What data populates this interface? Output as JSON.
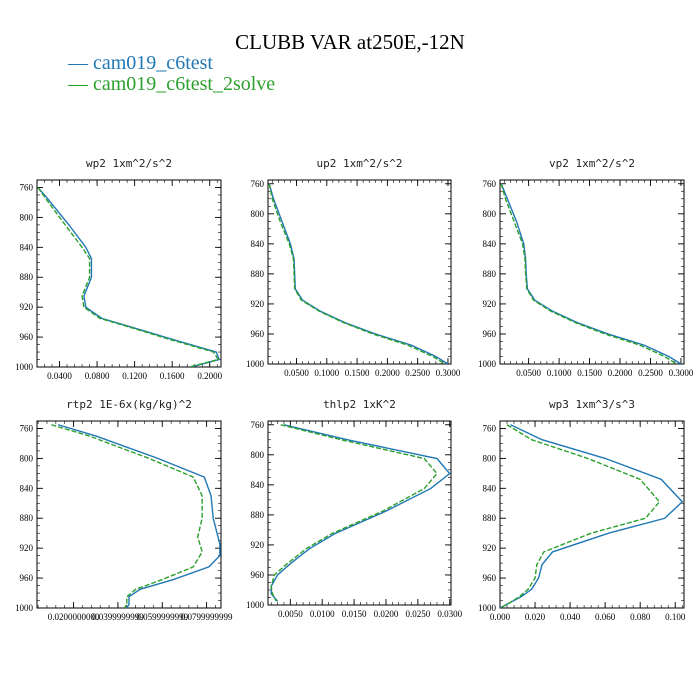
{
  "title": "CLUBB VAR at250E,-12N",
  "legend": [
    {
      "label": "cam019_c6test",
      "color": "#1f77b4",
      "dash": "solid",
      "marker": "—"
    },
    {
      "label": "cam019_c6test_2solve",
      "color": "#2ca02c",
      "dash": "dashed",
      "marker": "—"
    }
  ],
  "chart_data": [
    {
      "type": "line",
      "title": "wp2  1xm^2/s^2",
      "xlim": [
        0.016,
        0.212
      ],
      "ylim": [
        750,
        1000
      ],
      "xticks": [
        0.04,
        0.08,
        0.12,
        0.16,
        0.2
      ],
      "xtick_labels": [
        "0.0400",
        "0.0800",
        "0.1200",
        "0.1600",
        "0.2000"
      ],
      "yticks": [
        760,
        800,
        840,
        880,
        920,
        960,
        1000
      ],
      "ytick_labels": [
        "760",
        "800",
        "840",
        "880",
        "920",
        "960",
        "1000"
      ],
      "series": [
        {
          "name": "cam019_c6test",
          "x": [
            0.017,
            0.028,
            0.05,
            0.068,
            0.074,
            0.074,
            0.066,
            0.068,
            0.085,
            0.12,
            0.16,
            0.207,
            0.21,
            0.18
          ],
          "y": [
            760,
            776,
            810,
            840,
            855,
            880,
            905,
            920,
            935,
            948,
            963,
            980,
            990,
            1000
          ]
        },
        {
          "name": "cam019_c6test_2solve",
          "x": [
            0.017,
            0.026,
            0.046,
            0.064,
            0.072,
            0.072,
            0.064,
            0.066,
            0.083,
            0.118,
            0.157,
            0.204,
            0.209,
            0.178
          ],
          "y": [
            760,
            776,
            810,
            840,
            855,
            880,
            905,
            920,
            935,
            948,
            963,
            980,
            990,
            1000
          ]
        }
      ]
    },
    {
      "type": "line",
      "title": "up2  1xm^2/s^2",
      "xlim": [
        0.003,
        0.305
      ],
      "ylim": [
        755,
        1000
      ],
      "xticks": [
        0.05,
        0.1,
        0.15,
        0.2,
        0.25,
        0.3
      ],
      "xtick_labels": [
        "0.0500",
        "0.1000",
        "0.1500",
        "0.2000",
        "0.2500",
        "0.3000"
      ],
      "yticks": [
        760,
        800,
        840,
        880,
        920,
        960,
        1000
      ],
      "ytick_labels": [
        "760",
        "800",
        "840",
        "880",
        "920",
        "960",
        "1000"
      ],
      "series": [
        {
          "name": "cam019_c6test",
          "x": [
            0.005,
            0.012,
            0.026,
            0.04,
            0.046,
            0.047,
            0.048,
            0.06,
            0.09,
            0.13,
            0.18,
            0.24,
            0.28,
            0.3
          ],
          "y": [
            760,
            780,
            810,
            840,
            860,
            880,
            900,
            915,
            930,
            945,
            960,
            975,
            990,
            1000
          ]
        },
        {
          "name": "cam019_c6test_2solve",
          "x": [
            0.005,
            0.01,
            0.023,
            0.038,
            0.045,
            0.046,
            0.047,
            0.058,
            0.088,
            0.128,
            0.176,
            0.234,
            0.275,
            0.295
          ],
          "y": [
            760,
            780,
            810,
            840,
            860,
            880,
            900,
            915,
            930,
            945,
            960,
            975,
            990,
            1000
          ]
        }
      ]
    },
    {
      "type": "line",
      "title": "vp2  1xm^2/s^2",
      "xlim": [
        0.003,
        0.305
      ],
      "ylim": [
        755,
        1000
      ],
      "xticks": [
        0.05,
        0.1,
        0.15,
        0.2,
        0.25,
        0.3
      ],
      "xtick_labels": [
        "0.0500",
        "0.1000",
        "0.1500",
        "0.2000",
        "0.2500",
        "0.3000"
      ],
      "yticks": [
        760,
        800,
        840,
        880,
        920,
        960,
        1000
      ],
      "ytick_labels": [
        "760",
        "800",
        "840",
        "880",
        "920",
        "960",
        "1000"
      ],
      "series": [
        {
          "name": "cam019_c6test",
          "x": [
            0.005,
            0.015,
            0.03,
            0.042,
            0.045,
            0.046,
            0.048,
            0.06,
            0.09,
            0.13,
            0.18,
            0.24,
            0.28,
            0.3
          ],
          "y": [
            760,
            780,
            810,
            840,
            860,
            880,
            900,
            915,
            930,
            945,
            960,
            975,
            990,
            1000
          ]
        },
        {
          "name": "cam019_c6test_2solve",
          "x": [
            0.005,
            0.012,
            0.026,
            0.04,
            0.044,
            0.045,
            0.047,
            0.058,
            0.087,
            0.127,
            0.175,
            0.233,
            0.273,
            0.293
          ],
          "y": [
            760,
            780,
            810,
            840,
            860,
            880,
            900,
            915,
            930,
            945,
            960,
            975,
            990,
            1000
          ]
        }
      ]
    },
    {
      "type": "line",
      "title": "rtp2  1E-6x(kg/kg)^2",
      "xlim": [
        0.0035,
        0.0865
      ],
      "ylim": [
        750,
        1000
      ],
      "xticks": [
        0.02,
        0.04,
        0.06,
        0.08
      ],
      "xtick_labels": [
        "0.0200000000",
        "0.0399999999",
        "0.0599999999",
        "0.0799999999"
      ],
      "yticks": [
        760,
        800,
        840,
        880,
        920,
        960,
        1000
      ],
      "ytick_labels": [
        "760",
        "800",
        "840",
        "880",
        "920",
        "960",
        "1000"
      ],
      "series": [
        {
          "name": "cam019_c6test",
          "x": [
            0.013,
            0.03,
            0.058,
            0.079,
            0.082,
            0.083,
            0.086,
            0.086,
            0.081,
            0.065,
            0.05,
            0.045,
            0.045,
            0.044
          ],
          "y": [
            755,
            770,
            800,
            825,
            850,
            880,
            915,
            930,
            945,
            962,
            975,
            985,
            995,
            1000
          ]
        },
        {
          "name": "cam019_c6test_2solve",
          "x": [
            0.01,
            0.027,
            0.054,
            0.074,
            0.078,
            0.078,
            0.076,
            0.078,
            0.074,
            0.06,
            0.048,
            0.044,
            0.044,
            0.043
          ],
          "y": [
            755,
            770,
            800,
            825,
            850,
            880,
            905,
            925,
            945,
            962,
            975,
            985,
            995,
            1000
          ]
        }
      ]
    },
    {
      "type": "line",
      "title": "thlp2  1xK^2",
      "xlim": [
        0.0015,
        0.0302
      ],
      "ylim": [
        755,
        1000
      ],
      "xticks": [
        0.005,
        0.01,
        0.015,
        0.02,
        0.025,
        0.03
      ],
      "xtick_labels": [
        "0.0050",
        "0.0100",
        "0.0150",
        "0.0200",
        "0.0250",
        "0.0300"
      ],
      "yticks": [
        760,
        800,
        840,
        880,
        920,
        960,
        1000
      ],
      "ytick_labels": [
        "760",
        "800",
        "840",
        "880",
        "920",
        "960",
        "1000"
      ],
      "series": [
        {
          "name": "cam019_c6test",
          "x": [
            0.004,
            0.014,
            0.028,
            0.03,
            0.027,
            0.02,
            0.012,
            0.008,
            0.005,
            0.003,
            0.002,
            0.002,
            0.003
          ],
          "y": [
            760,
            780,
            805,
            825,
            845,
            875,
            905,
            925,
            945,
            960,
            975,
            985,
            995
          ]
        },
        {
          "name": "cam019_c6test_2solve",
          "x": [
            0.0035,
            0.013,
            0.026,
            0.028,
            0.026,
            0.0195,
            0.0115,
            0.0075,
            0.0045,
            0.0025,
            0.002,
            0.0022,
            0.0028
          ],
          "y": [
            760,
            780,
            805,
            825,
            845,
            875,
            905,
            925,
            945,
            960,
            975,
            985,
            995
          ]
        }
      ]
    },
    {
      "type": "line",
      "title": "wp3  1xm^3/s^3",
      "xlim": [
        0.0,
        0.105
      ],
      "ylim": [
        750,
        1000
      ],
      "xticks": [
        0.0,
        0.02,
        0.04,
        0.06,
        0.08,
        0.1
      ],
      "xtick_labels": [
        "0.000",
        "0.020",
        "0.040",
        "0.060",
        "0.080",
        "0.100"
      ],
      "yticks": [
        760,
        800,
        840,
        880,
        920,
        960,
        1000
      ],
      "ytick_labels": [
        "760",
        "800",
        "840",
        "880",
        "920",
        "960",
        "1000"
      ],
      "series": [
        {
          "name": "cam019_c6test",
          "x": [
            0.006,
            0.024,
            0.06,
            0.092,
            0.104,
            0.094,
            0.062,
            0.03,
            0.024,
            0.022,
            0.018,
            0.012,
            0.004,
            0.0
          ],
          "y": [
            755,
            775,
            800,
            828,
            858,
            880,
            900,
            925,
            942,
            960,
            975,
            985,
            995,
            1000
          ]
        },
        {
          "name": "cam019_c6test_2solve",
          "x": [
            0.004,
            0.018,
            0.05,
            0.08,
            0.091,
            0.083,
            0.052,
            0.025,
            0.021,
            0.02,
            0.016,
            0.011,
            0.004,
            0.0
          ],
          "y": [
            755,
            775,
            800,
            828,
            858,
            880,
            900,
            925,
            942,
            960,
            975,
            985,
            995,
            1000
          ]
        }
      ]
    }
  ]
}
